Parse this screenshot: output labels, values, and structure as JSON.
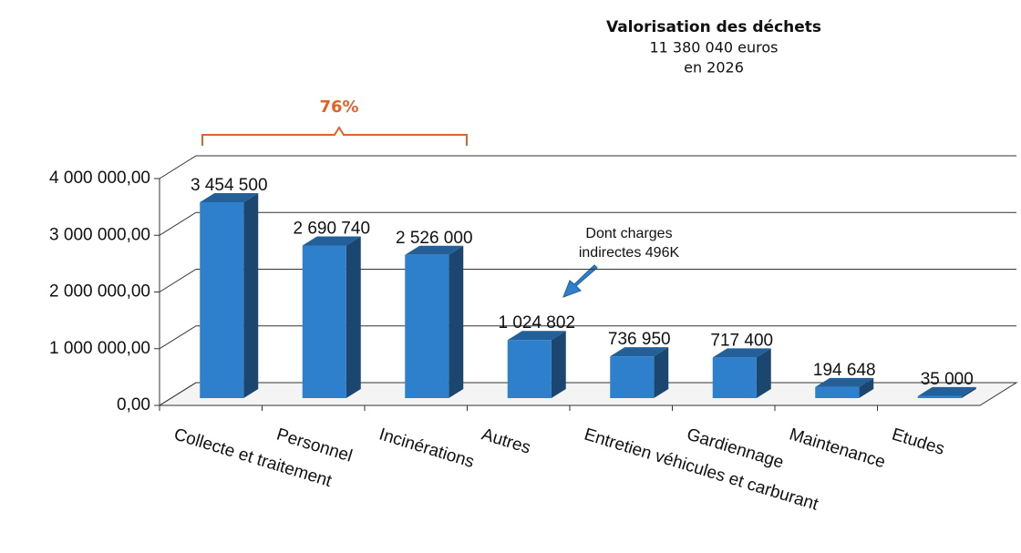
{
  "chart_data": {
    "type": "bar3d",
    "title": "Valorisation des déchets",
    "subtitle": [
      "11 380 040 euros",
      "en 2026"
    ],
    "bracket_label": "76%",
    "callout": [
      "Dont charges",
      "indirectes 496K"
    ],
    "categories": [
      "Collecte et traitement",
      "Personnel",
      "Incinérations",
      "Autres",
      "Entretien véhicules et carburant",
      "Gardiennage",
      "Maintenance",
      "Etudes"
    ],
    "values": [
      3454500,
      2690740,
      2526000,
      1024802,
      736950,
      717400,
      194648,
      35000
    ],
    "value_labels": [
      "3 454 500",
      "2 690 740",
      "2 526 000",
      "1 024 802",
      "736 950",
      "717 400",
      "194 648",
      "35 000"
    ],
    "color": "#2f80cc",
    "ylim": [
      0,
      4000000
    ],
    "yticks": [
      {
        "value": 0,
        "label": "0,00"
      },
      {
        "value": 1000000,
        "label": "1 000 000,00"
      },
      {
        "value": 2000000,
        "label": "2 000 000,00"
      },
      {
        "value": 3000000,
        "label": "3 000 000,00"
      },
      {
        "value": 4000000,
        "label": "4 000 000,00"
      }
    ],
    "grid": true
  }
}
